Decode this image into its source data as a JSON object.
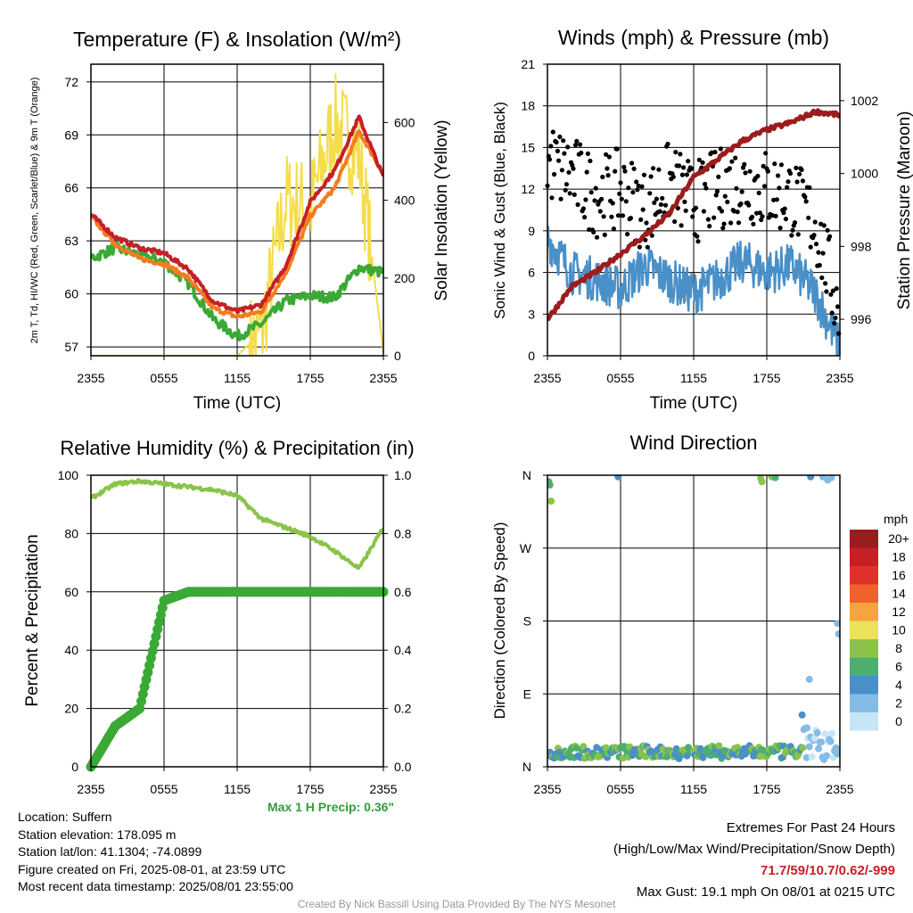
{
  "chart_data": [
    {
      "type": "line",
      "title": "Temperature (F) & Insolation (W/m²)",
      "xlabel": "Time (UTC)",
      "ylabel": "2m T, Td, HI/WC (Red, Green, Scarlet/Blue) & 9m T (Orange)",
      "y2label": "Solar Insolation (Yellow)",
      "x_ticks": [
        "2355",
        "0555",
        "1155",
        "1755",
        "2355"
      ],
      "y_ticks": [
        57,
        60,
        63,
        66,
        69,
        72
      ],
      "y2_ticks": [
        0,
        200,
        400,
        600
      ],
      "ylim": [
        56.5,
        73.0
      ],
      "y2lim": [
        0,
        750
      ],
      "x": [
        0,
        2,
        4,
        6,
        8,
        10,
        12,
        14,
        16,
        18,
        20,
        22,
        24
      ],
      "series": [
        {
          "axis": "y",
          "color": "#c62026",
          "values": [
            64.5,
            63.2,
            62.6,
            62.3,
            61.4,
            59.6,
            59.0,
            59.4,
            61.6,
            65.2,
            67.0,
            70.0,
            66.6
          ]
        },
        {
          "axis": "y",
          "color": "#f47b20",
          "values": [
            64.4,
            62.8,
            62.0,
            61.7,
            60.9,
            59.2,
            58.7,
            59.0,
            61.2,
            64.4,
            66.0,
            69.2,
            66.8
          ]
        },
        {
          "axis": "y",
          "color": "#3aa935",
          "values": [
            62.0,
            62.6,
            62.2,
            61.8,
            60.6,
            58.6,
            57.6,
            58.3,
            59.6,
            59.9,
            59.8,
            61.5,
            61.2
          ]
        },
        {
          "axis": "y2",
          "color": "#f5dc4d",
          "values": [
            0,
            0,
            0,
            0,
            0,
            0,
            0,
            60,
            400,
            380,
            600,
            520,
            10
          ]
        }
      ]
    },
    {
      "type": "line",
      "title": "Winds (mph) & Pressure (mb)",
      "xlabel": "Time (UTC)",
      "ylabel": "Sonic Wind & Gust (Blue, Black)",
      "y2label": "Station Pressure (Maroon)",
      "x_ticks": [
        "2355",
        "0555",
        "1155",
        "1755",
        "2355"
      ],
      "y_ticks": [
        0,
        3,
        6,
        9,
        12,
        15,
        18,
        21
      ],
      "y2_ticks": [
        996,
        998,
        1000,
        1002
      ],
      "ylim": [
        0,
        21
      ],
      "y2lim": [
        995.0,
        1003.0
      ],
      "x": [
        0,
        2,
        4,
        6,
        8,
        10,
        12,
        14,
        16,
        18,
        20,
        22,
        24
      ],
      "series": [
        {
          "axis": "y",
          "color": "#4a90c8",
          "values": [
            8.5,
            6.0,
            5.5,
            4.8,
            6.5,
            5.5,
            4.5,
            5.5,
            6.8,
            6.0,
            6.5,
            4.5,
            0.5
          ]
        },
        {
          "axis": "y",
          "color": "#000000",
          "style": "dots",
          "values": [
            14.0,
            13.0,
            11.5,
            12.0,
            10.5,
            12.5,
            11.0,
            12.0,
            12.5,
            12.0,
            11.5,
            9.5,
            3.0
          ]
        },
        {
          "axis": "y2",
          "color": "#9b1c1c",
          "values": [
            996.0,
            996.9,
            997.3,
            997.8,
            998.3,
            998.9,
            999.9,
            1000.4,
            1000.9,
            1001.2,
            1001.4,
            1001.7,
            1001.6
          ]
        }
      ]
    },
    {
      "type": "line",
      "title": "Relative Humidity (%) & Precipitation (in)",
      "ylabel": "Percent & Precipitation",
      "x_ticks": [
        "2355",
        "0555",
        "1155",
        "1755",
        "2355"
      ],
      "y_ticks": [
        0,
        20,
        40,
        60,
        80,
        100
      ],
      "y2_ticks": [
        "0.0",
        "0.2",
        "0.4",
        "0.6",
        "0.8",
        "1.0"
      ],
      "ylim": [
        0,
        100
      ],
      "y2lim": [
        0,
        1.0
      ],
      "x": [
        0,
        2,
        4,
        6,
        8,
        10,
        12,
        14,
        16,
        18,
        20,
        22,
        24
      ],
      "series": [
        {
          "axis": "y",
          "color": "#8bc34a",
          "values": [
            92,
            97,
            98,
            97,
            96,
            95,
            93,
            85,
            82,
            79,
            74,
            68,
            82
          ]
        },
        {
          "axis": "y2",
          "color": "#3aa935",
          "style": "dots",
          "values": [
            0.0,
            0.14,
            0.2,
            0.57,
            0.6,
            0.6,
            0.6,
            0.6,
            0.6,
            0.6,
            0.6,
            0.6,
            0.6
          ]
        }
      ]
    },
    {
      "type": "scatter",
      "title": "Wind Direction",
      "ylabel": "Direction (Colored By Speed)",
      "x_ticks": [
        "2355",
        "0555",
        "1155",
        "1755",
        "2355"
      ],
      "y_tick_labels": [
        "N",
        "E",
        "S",
        "W",
        "N"
      ],
      "legend_title": "mph",
      "legend_labels": [
        "20+",
        "18",
        "16",
        "14",
        "12",
        "10",
        "8",
        "6",
        "4",
        "2",
        "0"
      ],
      "legend_colors": [
        "#9b1c1c",
        "#c62026",
        "#e0322a",
        "#f0622a",
        "#f7a340",
        "#ece25a",
        "#8bc34a",
        "#4caf70",
        "#4a90c8",
        "#84bce6",
        "#c6e6f8"
      ]
    }
  ],
  "max_precip": "Max 1 H Precip: 0.36\"",
  "info": {
    "location": "Location: Suffern",
    "elevation": "Station elevation: 178.095 m",
    "latlon": "Station lat/lon: 41.1304; -74.0899",
    "created": "Figure created on Fri, 2025-08-01, at 23:59 UTC",
    "recent": "Most recent data timestamp: 2025/08/01 23:55:00"
  },
  "extremes": {
    "title": "Extremes For Past 24 Hours",
    "subtitle": "(High/Low/Max Wind/Precipitation/Snow Depth)",
    "values": "71.7/59/10.7/0.62/-999",
    "gust": "Max Gust: 19.1 mph On 08/01 at 0215 UTC"
  },
  "credit": "Created By Nick Bassill Using Data Provided By The NYS Mesonet"
}
